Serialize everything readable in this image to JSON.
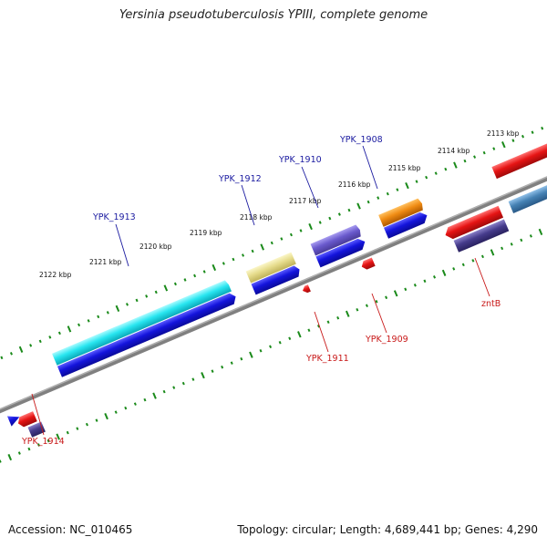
{
  "title": "Yersinia pseudotuberculosis YPIII, complete genome",
  "footer": {
    "accession": "Accession: NC_010465",
    "summary": "Topology: circular; Length: 4,689,441 bp; Genes: 4,290"
  },
  "scale_labels": [
    "2113 kbp",
    "2114 kbp",
    "2115 kbp",
    "2116 kbp",
    "2117 kbp",
    "2118 kbp",
    "2119 kbp",
    "2120 kbp",
    "2121 kbp",
    "2122 kbp"
  ],
  "forward_gene_labels": [
    "YPK_1908",
    "YPK_1910",
    "YPK_1912",
    "YPK_1913"
  ],
  "reverse_gene_labels": [
    "YPK_1909",
    "YPK_1911",
    "YPK_1914",
    "zntB"
  ],
  "colors": {
    "backbone": "#808080",
    "ticks": "#1a8a1a",
    "cds": "#1414dc",
    "cyan_feature": "#28e6f0",
    "khaki_feature": "#e6dc8c",
    "slate_feature": "#6a5acd",
    "orange_feature": "#f08c14",
    "red_feature": "#e61414",
    "darkslate_feature": "#463c8c",
    "steelblue_feature": "#4682b4"
  }
}
